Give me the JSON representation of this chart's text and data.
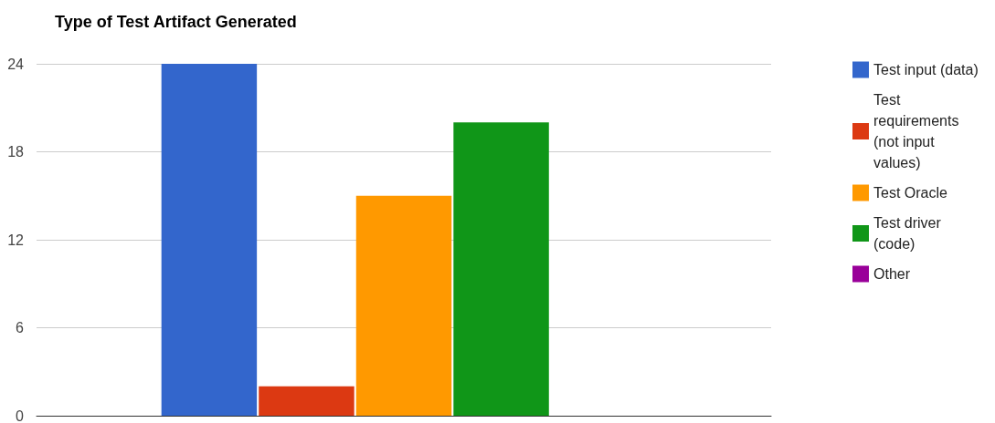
{
  "chart_data": {
    "type": "bar",
    "title": "Type of Test Artifact Generated",
    "categories": [
      null
    ],
    "series": [
      {
        "name": "Test input (data)",
        "color": "#3366cc",
        "values": [
          24
        ]
      },
      {
        "name": "Test requirements (not input values)",
        "color": "#dc3912",
        "values": [
          2
        ]
      },
      {
        "name": "Test Oracle",
        "color": "#ff9900",
        "values": [
          15
        ]
      },
      {
        "name": "Test driver (code)",
        "color": "#109618",
        "values": [
          20
        ]
      },
      {
        "name": "Other",
        "color": "#990099",
        "values": [
          0
        ]
      }
    ],
    "ylim": [
      0,
      24
    ],
    "yticks": [
      0,
      6,
      12,
      18,
      24
    ],
    "grid": "y",
    "legend": "top right"
  }
}
